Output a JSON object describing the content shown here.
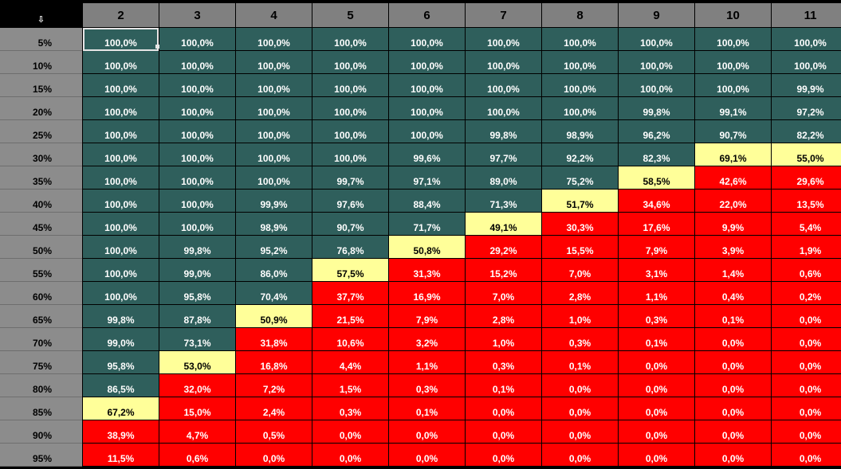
{
  "corner": {
    "icon": "arrow-down-icon",
    "glyph": "⇩"
  },
  "colors": {
    "teal": "#2f5f5c",
    "yellow": "#ffff99",
    "red": "#ff0000",
    "header_gray": "#808080"
  },
  "columns": [
    "2",
    "3",
    "4",
    "5",
    "6",
    "7",
    "8",
    "9",
    "10",
    "11"
  ],
  "rows": [
    {
      "label": "5%",
      "values": [
        "100,0%",
        "100,0%",
        "100,0%",
        "100,0%",
        "100,0%",
        "100,0%",
        "100,0%",
        "100,0%",
        "100,0%",
        "100,0%"
      ],
      "status": [
        "teal",
        "teal",
        "teal",
        "teal",
        "teal",
        "teal",
        "teal",
        "teal",
        "teal",
        "teal"
      ]
    },
    {
      "label": "10%",
      "values": [
        "100,0%",
        "100,0%",
        "100,0%",
        "100,0%",
        "100,0%",
        "100,0%",
        "100,0%",
        "100,0%",
        "100,0%",
        "100,0%"
      ],
      "status": [
        "teal",
        "teal",
        "teal",
        "teal",
        "teal",
        "teal",
        "teal",
        "teal",
        "teal",
        "teal"
      ]
    },
    {
      "label": "15%",
      "values": [
        "100,0%",
        "100,0%",
        "100,0%",
        "100,0%",
        "100,0%",
        "100,0%",
        "100,0%",
        "100,0%",
        "100,0%",
        "99,9%"
      ],
      "status": [
        "teal",
        "teal",
        "teal",
        "teal",
        "teal",
        "teal",
        "teal",
        "teal",
        "teal",
        "teal"
      ]
    },
    {
      "label": "20%",
      "values": [
        "100,0%",
        "100,0%",
        "100,0%",
        "100,0%",
        "100,0%",
        "100,0%",
        "100,0%",
        "99,8%",
        "99,1%",
        "97,2%"
      ],
      "status": [
        "teal",
        "teal",
        "teal",
        "teal",
        "teal",
        "teal",
        "teal",
        "teal",
        "teal",
        "teal"
      ]
    },
    {
      "label": "25%",
      "values": [
        "100,0%",
        "100,0%",
        "100,0%",
        "100,0%",
        "100,0%",
        "99,8%",
        "98,9%",
        "96,2%",
        "90,7%",
        "82,2%"
      ],
      "status": [
        "teal",
        "teal",
        "teal",
        "teal",
        "teal",
        "teal",
        "teal",
        "teal",
        "teal",
        "teal"
      ]
    },
    {
      "label": "30%",
      "values": [
        "100,0%",
        "100,0%",
        "100,0%",
        "100,0%",
        "99,6%",
        "97,7%",
        "92,2%",
        "82,3%",
        "69,1%",
        "55,0%"
      ],
      "status": [
        "teal",
        "teal",
        "teal",
        "teal",
        "teal",
        "teal",
        "teal",
        "teal",
        "yellow",
        "yellow"
      ]
    },
    {
      "label": "35%",
      "values": [
        "100,0%",
        "100,0%",
        "100,0%",
        "99,7%",
        "97,1%",
        "89,0%",
        "75,2%",
        "58,5%",
        "42,6%",
        "29,6%"
      ],
      "status": [
        "teal",
        "teal",
        "teal",
        "teal",
        "teal",
        "teal",
        "teal",
        "yellow",
        "red",
        "red"
      ]
    },
    {
      "label": "40%",
      "values": [
        "100,0%",
        "100,0%",
        "99,9%",
        "97,6%",
        "88,4%",
        "71,3%",
        "51,7%",
        "34,6%",
        "22,0%",
        "13,5%"
      ],
      "status": [
        "teal",
        "teal",
        "teal",
        "teal",
        "teal",
        "teal",
        "yellow",
        "red",
        "red",
        "red"
      ]
    },
    {
      "label": "45%",
      "values": [
        "100,0%",
        "100,0%",
        "98,9%",
        "90,7%",
        "71,7%",
        "49,1%",
        "30,3%",
        "17,6%",
        "9,9%",
        "5,4%"
      ],
      "status": [
        "teal",
        "teal",
        "teal",
        "teal",
        "teal",
        "yellow",
        "red",
        "red",
        "red",
        "red"
      ]
    },
    {
      "label": "50%",
      "values": [
        "100,0%",
        "99,8%",
        "95,2%",
        "76,8%",
        "50,8%",
        "29,2%",
        "15,5%",
        "7,9%",
        "3,9%",
        "1,9%"
      ],
      "status": [
        "teal",
        "teal",
        "teal",
        "teal",
        "yellow",
        "red",
        "red",
        "red",
        "red",
        "red"
      ]
    },
    {
      "label": "55%",
      "values": [
        "100,0%",
        "99,0%",
        "86,0%",
        "57,5%",
        "31,3%",
        "15,2%",
        "7,0%",
        "3,1%",
        "1,4%",
        "0,6%"
      ],
      "status": [
        "teal",
        "teal",
        "teal",
        "yellow",
        "red",
        "red",
        "red",
        "red",
        "red",
        "red"
      ]
    },
    {
      "label": "60%",
      "values": [
        "100,0%",
        "95,8%",
        "70,4%",
        "37,7%",
        "16,9%",
        "7,0%",
        "2,8%",
        "1,1%",
        "0,4%",
        "0,2%"
      ],
      "status": [
        "teal",
        "teal",
        "teal",
        "red",
        "red",
        "red",
        "red",
        "red",
        "red",
        "red"
      ]
    },
    {
      "label": "65%",
      "values": [
        "99,8%",
        "87,8%",
        "50,9%",
        "21,5%",
        "7,9%",
        "2,8%",
        "1,0%",
        "0,3%",
        "0,1%",
        "0,0%"
      ],
      "status": [
        "teal",
        "teal",
        "yellow",
        "red",
        "red",
        "red",
        "red",
        "red",
        "red",
        "red"
      ]
    },
    {
      "label": "70%",
      "values": [
        "99,0%",
        "73,1%",
        "31,8%",
        "10,6%",
        "3,2%",
        "1,0%",
        "0,3%",
        "0,1%",
        "0,0%",
        "0,0%"
      ],
      "status": [
        "teal",
        "teal",
        "red",
        "red",
        "red",
        "red",
        "red",
        "red",
        "red",
        "red"
      ]
    },
    {
      "label": "75%",
      "values": [
        "95,8%",
        "53,0%",
        "16,8%",
        "4,4%",
        "1,1%",
        "0,3%",
        "0,1%",
        "0,0%",
        "0,0%",
        "0,0%"
      ],
      "status": [
        "teal",
        "yellow",
        "red",
        "red",
        "red",
        "red",
        "red",
        "red",
        "red",
        "red"
      ]
    },
    {
      "label": "80%",
      "values": [
        "86,5%",
        "32,0%",
        "7,2%",
        "1,5%",
        "0,3%",
        "0,1%",
        "0,0%",
        "0,0%",
        "0,0%",
        "0,0%"
      ],
      "status": [
        "teal",
        "red",
        "red",
        "red",
        "red",
        "red",
        "red",
        "red",
        "red",
        "red"
      ]
    },
    {
      "label": "85%",
      "values": [
        "67,2%",
        "15,0%",
        "2,4%",
        "0,3%",
        "0,1%",
        "0,0%",
        "0,0%",
        "0,0%",
        "0,0%",
        "0,0%"
      ],
      "status": [
        "yellow",
        "red",
        "red",
        "red",
        "red",
        "red",
        "red",
        "red",
        "red",
        "red"
      ]
    },
    {
      "label": "90%",
      "values": [
        "38,9%",
        "4,7%",
        "0,5%",
        "0,0%",
        "0,0%",
        "0,0%",
        "0,0%",
        "0,0%",
        "0,0%",
        "0,0%"
      ],
      "status": [
        "red",
        "red",
        "red",
        "red",
        "red",
        "red",
        "red",
        "red",
        "red",
        "red"
      ]
    },
    {
      "label": "95%",
      "values": [
        "11,5%",
        "0,6%",
        "0,0%",
        "0,0%",
        "0,0%",
        "0,0%",
        "0,0%",
        "0,0%",
        "0,0%",
        "0,0%"
      ],
      "status": [
        "red",
        "red",
        "red",
        "red",
        "red",
        "red",
        "red",
        "red",
        "red",
        "red"
      ]
    }
  ],
  "selected_cell": {
    "row": 0,
    "col": 0
  }
}
